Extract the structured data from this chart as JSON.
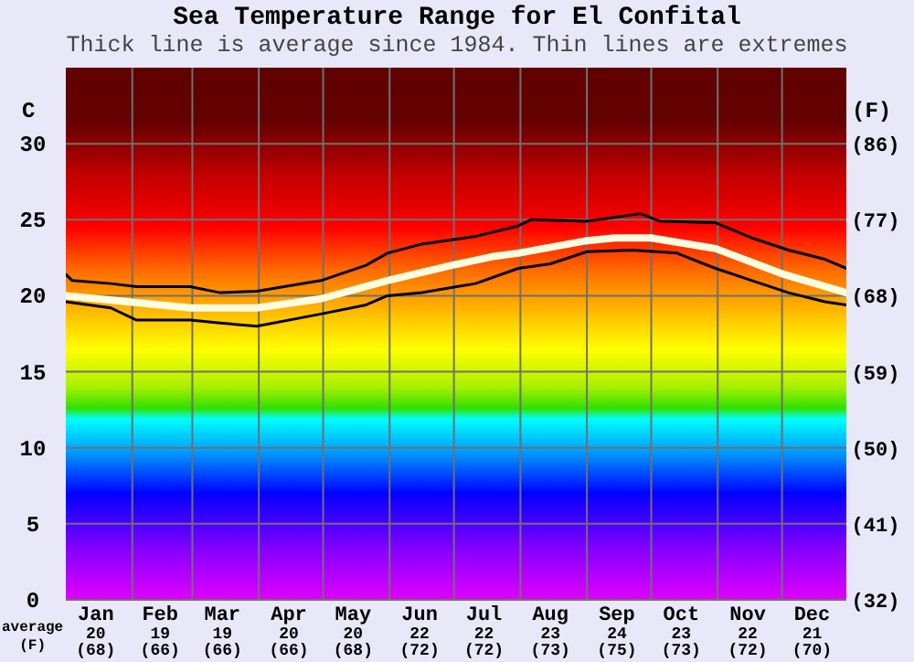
{
  "chart_data": {
    "type": "line",
    "title": "Sea Temperature Range for El Confital",
    "subtitle": "Thick line is average since 1984. Thin lines are extremes",
    "ylabel": "C",
    "y2label": "(F)",
    "xlabel": "average\n(F)",
    "xlim": [
      "--01-01",
      "--12-31"
    ],
    "xticks": [
      {
        "value": "--01-15",
        "label": "Jan\n20\n(68)"
      },
      {
        "value": "--02-01",
        "label": null
      },
      {
        "value": "--02-14",
        "label": "Feb\n19\n(66)"
      },
      {
        "value": "--03-01",
        "label": null
      },
      {
        "value": "--03-15",
        "label": "Mar\n19\n(66)"
      },
      {
        "value": "--04-01",
        "label": null
      },
      {
        "value": "--04-15",
        "label": "Apr\n20\n(66)"
      },
      {
        "value": "--05-01",
        "label": null
      },
      {
        "value": "--05-15",
        "label": "May\n20\n(68)"
      },
      {
        "value": "--06-01",
        "label": null
      },
      {
        "value": "--06-15",
        "label": "Jun\n22\n(72)"
      },
      {
        "value": "--07-01",
        "label": null
      },
      {
        "value": "--07-15",
        "label": "Jul\n22\n(72)"
      },
      {
        "value": "--08-01",
        "label": null
      },
      {
        "value": "--08-15",
        "label": "Aug\n23\n(73)"
      },
      {
        "value": "--09-01",
        "label": null
      },
      {
        "value": "--09-15",
        "label": "Sep\n24\n(75)"
      },
      {
        "value": "--10-01",
        "label": null
      },
      {
        "value": "--10-15",
        "label": "Oct\n23\n(73)"
      },
      {
        "value": "--11-01",
        "label": null
      },
      {
        "value": "--11-15",
        "label": "Nov\n22\n(72)"
      },
      {
        "value": "--12-01",
        "label": null
      },
      {
        "value": "--12-15",
        "label": "Dec\n21\n(70)"
      }
    ],
    "ylim": [
      0,
      35
    ],
    "yticks": [
      0,
      5,
      10,
      15,
      20,
      25,
      30
    ],
    "y2lim": [
      32,
      95
    ],
    "y2ticks": [
      {
        "value": 32,
        "label": "(32)"
      },
      {
        "value": 41,
        "label": "(41)"
      },
      {
        "value": 50,
        "label": "(50)"
      },
      {
        "value": 59,
        "label": "(59)"
      },
      {
        "value": 68,
        "label": "(68)"
      },
      {
        "value": 77,
        "label": "(77)"
      },
      {
        "value": 86,
        "label": "(86)"
      }
    ],
    "grid": true,
    "marker": "none",
    "line_style": "solid",
    "series": [
      {
        "color": "#000000",
        "x": [
          "--01-01",
          "--01-04",
          "--01-22",
          "--02-03",
          "--02-28",
          "--03-14",
          "--03-31",
          "--04-30",
          "--05-21",
          "--05-31",
          "--06-16",
          "--07-11",
          "--07-31",
          "--08-06",
          "--09-01",
          "--09-26",
          "--10-05",
          "--10-31",
          "--11-17",
          "--12-04",
          "--12-21",
          "--12-31"
        ],
        "values": [
          21.4,
          21.0,
          20.8,
          20.6,
          20.6,
          20.2,
          20.3,
          21.0,
          22.0,
          22.8,
          23.4,
          23.9,
          24.6,
          25.0,
          24.9,
          25.4,
          24.9,
          24.8,
          23.8,
          23.0,
          22.4,
          21.8
        ]
      },
      {
        "color": "#fffde0",
        "x": [
          "--01-01",
          "--01-30",
          "--02-28",
          "--03-31",
          "--04-30",
          "--05-31",
          "--06-30",
          "--07-20",
          "--07-31",
          "--08-31",
          "--09-14",
          "--10-01",
          "--10-31",
          "--12-02",
          "--12-31"
        ],
        "values": [
          20.0,
          19.6,
          19.2,
          19.2,
          19.8,
          21.0,
          22.0,
          22.6,
          22.8,
          23.6,
          23.8,
          23.8,
          23.1,
          21.4,
          20.2
        ]
      },
      {
        "color": "#000000",
        "x": [
          "--01-01",
          "--01-22",
          "--02-03",
          "--02-28",
          "--03-14",
          "--03-31",
          "--04-30",
          "--05-21",
          "--05-31",
          "--06-16",
          "--07-11",
          "--07-31",
          "--08-15",
          "--09-01",
          "--09-22",
          "--10-13",
          "--10-31",
          "--11-17",
          "--12-04",
          "--12-21",
          "--12-31"
        ],
        "values": [
          19.6,
          19.2,
          18.4,
          18.4,
          18.2,
          18.0,
          18.8,
          19.4,
          20.0,
          20.2,
          20.8,
          21.8,
          22.1,
          22.9,
          23.0,
          22.8,
          21.8,
          21.0,
          20.2,
          19.6,
          19.4
        ]
      }
    ]
  }
}
